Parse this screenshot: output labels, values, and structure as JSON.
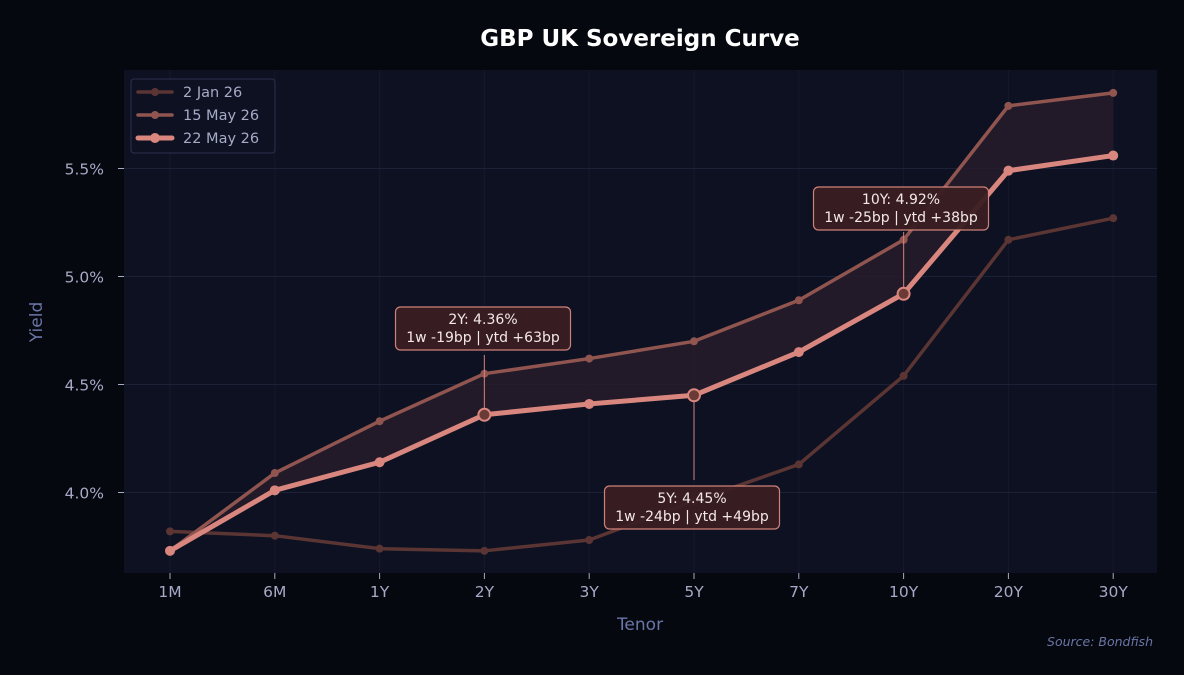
{
  "colors": {
    "page_bg": "#05080f",
    "plot_bg": "#0d1122",
    "grid": "#1b2136",
    "text_tick": "#a6aac6",
    "text_axis_label": "#6b76a6",
    "title": "#ffffff",
    "source": "#6b76a6",
    "annotation_bg": "#3a1e22",
    "annotation_border": "#d9877e",
    "annotation_text": "#f4e8e6",
    "band_fill": "#2a1c2c"
  },
  "chart_data": {
    "type": "line",
    "title": "GBP UK Sovereign Curve",
    "xlabel": "Tenor",
    "ylabel": "Yield",
    "source": "Source: Bondfish",
    "categories": [
      "1M",
      "6M",
      "1Y",
      "2Y",
      "3Y",
      "5Y",
      "7Y",
      "10Y",
      "20Y",
      "30Y"
    ],
    "ylim": [
      3.63,
      5.98
    ],
    "yticks": [
      4.0,
      4.5,
      5.0,
      5.5
    ],
    "ytick_labels": [
      "4.0%",
      "4.5%",
      "5.0%",
      "5.5%"
    ],
    "grid": true,
    "legend_position": "top-left",
    "shaded_band": "between 15 May 26 and 22 May 26",
    "series": [
      {
        "name": "2 Jan 26",
        "color": "#5a3533",
        "values": [
          3.82,
          3.8,
          3.74,
          3.73,
          3.78,
          3.96,
          4.13,
          4.54,
          5.17,
          5.27
        ]
      },
      {
        "name": "15 May 26",
        "color": "#91554f",
        "values": [
          3.73,
          4.09,
          4.33,
          4.55,
          4.62,
          4.7,
          4.89,
          5.17,
          5.79,
          5.85
        ]
      },
      {
        "name": "22 May 26",
        "color": "#d9877e",
        "values": [
          3.73,
          4.01,
          4.14,
          4.36,
          4.41,
          4.45,
          4.65,
          4.92,
          5.49,
          5.56
        ]
      }
    ],
    "annotations": [
      {
        "tenor": "2Y",
        "line1": "2Y: 4.36%",
        "line2": "1w -19bp | ytd +63bp"
      },
      {
        "tenor": "5Y",
        "line1": "5Y: 4.45%",
        "line2": "1w -24bp | ytd +49bp"
      },
      {
        "tenor": "10Y",
        "line1": "10Y: 4.92%",
        "line2": "1w -25bp | ytd +38bp"
      }
    ]
  }
}
